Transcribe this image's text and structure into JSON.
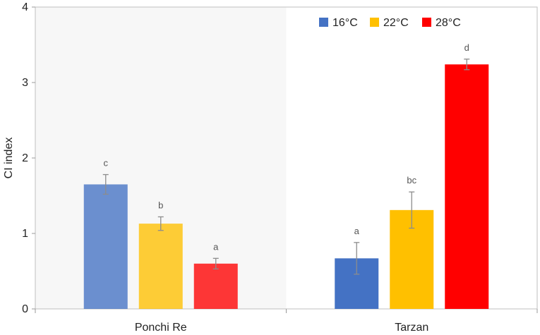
{
  "chart_data": {
    "type": "bar",
    "ylabel": "CI index",
    "xlabel": "",
    "ylim": [
      0,
      4
    ],
    "yticks": [
      "0",
      "1",
      "2",
      "3",
      "4"
    ],
    "grid": false,
    "legend_position": "top-right",
    "categories": [
      "Ponchi Re",
      "Tarzan"
    ],
    "shaded_category": "Ponchi Re",
    "series": [
      {
        "name": "16°C",
        "color": "#4472c4",
        "values": [
          1.65,
          0.67
        ],
        "errors": [
          0.13,
          0.21
        ],
        "sig": [
          "c",
          "a"
        ]
      },
      {
        "name": "22°C",
        "color": "#ffc000",
        "values": [
          1.13,
          1.31
        ],
        "errors": [
          0.09,
          0.24
        ],
        "sig": [
          "b",
          "bc"
        ]
      },
      {
        "name": "28°C",
        "color": "#ff0000",
        "values": [
          0.6,
          3.24
        ],
        "errors": [
          0.07,
          0.07
        ],
        "sig": [
          "a",
          "d"
        ]
      }
    ]
  }
}
